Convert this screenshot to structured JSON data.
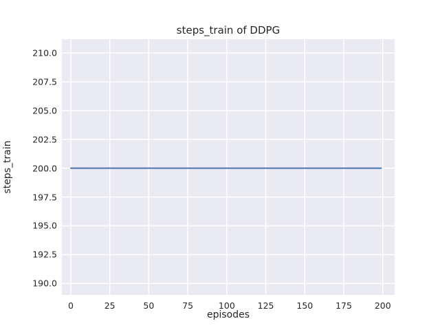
{
  "chart_data": {
    "type": "line",
    "title": "steps_train of DDPG",
    "xlabel": "episodes",
    "ylabel": "steps_train",
    "x_ticks": [
      0,
      25,
      50,
      75,
      100,
      125,
      150,
      175,
      200
    ],
    "x_tick_labels": [
      "0",
      "25",
      "50",
      "75",
      "100",
      "125",
      "150",
      "175",
      "200"
    ],
    "y_ticks": [
      190,
      192.5,
      195,
      197.5,
      200,
      202.5,
      205,
      207.5,
      210
    ],
    "y_tick_labels": [
      "190.0",
      "192.5",
      "195.0",
      "197.5",
      "200.0",
      "202.5",
      "205.0",
      "207.5",
      "210.0"
    ],
    "xlim": [
      -5.7,
      207.6
    ],
    "ylim": [
      189.0,
      211.2
    ],
    "grid": true,
    "legend": "none",
    "style": "seaborn-darkgrid",
    "axes_background_color": "#EAEAF2",
    "gridline_color": "#FFFFFF",
    "text_color": "#262626",
    "series": [
      {
        "name": "steps_train",
        "color": "#4C72B0",
        "line_width": 2,
        "points": [
          [
            0,
            200
          ],
          [
            199,
            200
          ]
        ]
      }
    ]
  }
}
